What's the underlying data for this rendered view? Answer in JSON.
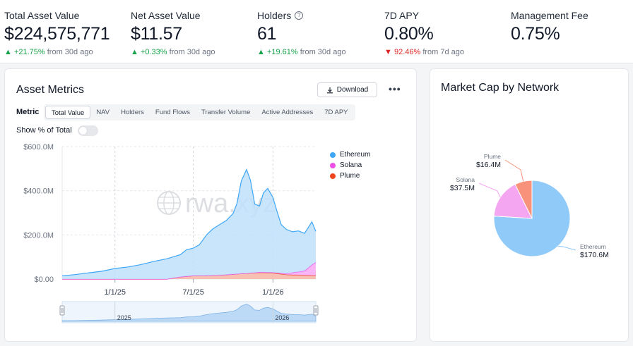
{
  "stats": [
    {
      "label": "Total Asset Value",
      "value": "$224,575,771",
      "change": "+21.75%",
      "direction": "up",
      "period": "from 30d ago"
    },
    {
      "label": "Net Asset Value",
      "value": "$11.57",
      "change": "+0.33%",
      "direction": "up",
      "period": "from 30d ago"
    },
    {
      "label": "Holders",
      "value": "61",
      "change": "+19.61%",
      "direction": "up",
      "period": "from 30d ago",
      "help_icon": "question-circle-icon"
    },
    {
      "label": "7D APY",
      "value": "0.80%",
      "change": "92.46%",
      "direction": "down",
      "period": "from 7d ago"
    },
    {
      "label": "Management Fee",
      "value": "0.75%"
    }
  ],
  "asset_metrics": {
    "title": "Asset Metrics",
    "download_label": "Download",
    "more_label": "•••",
    "metric_label": "Metric",
    "tabs": [
      "Total Value",
      "NAV",
      "Holders",
      "Fund Flows",
      "Transfer Volume",
      "Active Addresses",
      "7D APY"
    ],
    "active_tab": "Total Value",
    "toggle_label": "Show % of Total",
    "toggle_on": false,
    "watermark": "rwa.xyz"
  },
  "market_cap": {
    "title": "Market Cap by Network"
  },
  "colors": {
    "ethereum": "#3ea6f5",
    "ethereum_fill": "#bfe1fb",
    "solana": "#ec4fe6",
    "solana_fill": "#f7a8f4",
    "plume": "#f0441c",
    "up": "#16a34a",
    "down": "#dc2626"
  },
  "chart_data": [
    {
      "type": "area",
      "title": "Asset Metrics",
      "xlabel": "",
      "ylabel": "",
      "x_ticks": [
        "1/1/25",
        "7/1/25",
        "1/1/26"
      ],
      "y_ticks": [
        "$0.00",
        "$200.0M",
        "$400.0M",
        "$600.0M"
      ],
      "ylim": [
        0,
        600
      ],
      "y_unit": "$M",
      "stacked": true,
      "legend": [
        "Ethereum",
        "Solana",
        "Plume"
      ],
      "legend_position": "top-right",
      "grid": true,
      "navigator_ticks": [
        "2025",
        "2026"
      ],
      "series": [
        {
          "name": "Ethereum",
          "x": [
            "2024-09-01",
            "2024-10-01",
            "2024-11-01",
            "2024-12-01",
            "2025-01-01",
            "2025-02-01",
            "2025-03-01",
            "2025-04-01",
            "2025-05-01",
            "2025-06-01",
            "2025-06-15",
            "2025-07-01",
            "2025-07-15",
            "2025-08-01",
            "2025-08-15",
            "2025-09-01",
            "2025-09-15",
            "2025-10-01",
            "2025-10-10",
            "2025-10-20",
            "2025-11-01",
            "2025-11-10",
            "2025-11-20",
            "2025-12-01",
            "2025-12-10",
            "2025-12-20",
            "2026-01-01",
            "2026-01-10",
            "2026-01-20",
            "2026-02-01",
            "2026-02-15",
            "2026-03-01",
            "2026-03-15",
            "2026-04-01",
            "2026-04-10"
          ],
          "values": [
            15,
            20,
            28,
            35,
            48,
            55,
            65,
            80,
            92,
            100,
            120,
            125,
            140,
            185,
            210,
            230,
            245,
            275,
            320,
            420,
            470,
            420,
            310,
            300,
            360,
            380,
            340,
            280,
            220,
            200,
            185,
            185,
            170,
            195,
            140
          ]
        },
        {
          "name": "Solana",
          "x": [
            "2024-09-01",
            "2025-05-01",
            "2025-06-01",
            "2025-07-01",
            "2025-08-01",
            "2025-09-01",
            "2025-10-01",
            "2025-11-01",
            "2025-12-01",
            "2026-01-01",
            "2026-02-01",
            "2026-03-01",
            "2026-03-15",
            "2026-04-01",
            "2026-04-10"
          ],
          "values": [
            0,
            0,
            0,
            0,
            0,
            0,
            0,
            0,
            1,
            2,
            5,
            15,
            20,
            48,
            60
          ]
        },
        {
          "name": "Plume",
          "x": [
            "2024-09-01",
            "2025-05-01",
            "2025-06-01",
            "2025-07-01",
            "2025-08-01",
            "2025-09-01",
            "2025-10-01",
            "2025-11-01",
            "2025-12-01",
            "2026-01-01",
            "2026-02-01",
            "2026-03-01",
            "2026-04-01",
            "2026-04-10"
          ],
          "values": [
            0,
            0,
            10,
            15,
            16,
            18,
            22,
            26,
            30,
            28,
            20,
            18,
            16,
            16
          ]
        }
      ]
    },
    {
      "type": "pie",
      "title": "Market Cap by Network",
      "categories": [
        "Ethereum",
        "Solana",
        "Plume"
      ],
      "values": [
        170.6,
        37.5,
        16.4
      ],
      "labels": [
        "$170.6M",
        "$37.5M",
        "$16.4M"
      ],
      "colors": [
        "#90caf9",
        "#f4a6f0",
        "#f8927a"
      ]
    }
  ]
}
